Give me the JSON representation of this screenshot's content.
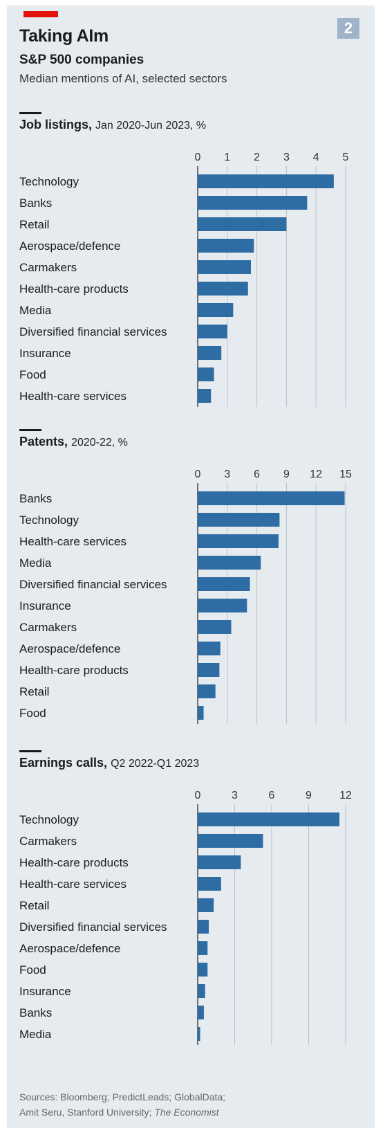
{
  "header": {
    "title": "Taking AIm",
    "subtitle": "S&P 500 companies",
    "description": "Median mentions of AI, selected sectors",
    "figure_number": "2"
  },
  "colors": {
    "bar": "#2e6ca4",
    "grid": "#b8c2cc",
    "accent": "#e3120b",
    "background": "#e6ebf0"
  },
  "chart_data": [
    {
      "type": "bar",
      "orientation": "horizontal",
      "title": "Job listings,",
      "period": "Jan 2020-Jun 2023, %",
      "categories": [
        "Technology",
        "Banks",
        "Retail",
        "Aerospace/defence",
        "Carmakers",
        "Health-care products",
        "Media",
        "Diversified financial services",
        "Insurance",
        "Food",
        "Health-care services"
      ],
      "values": [
        4.6,
        3.7,
        3.0,
        1.9,
        1.8,
        1.7,
        1.2,
        1.0,
        0.8,
        0.55,
        0.45
      ],
      "xlim": [
        0,
        5
      ],
      "ticks": [
        "0",
        "1",
        "2",
        "3",
        "4",
        "5"
      ],
      "tick_values": [
        0,
        1,
        2,
        3,
        4,
        5
      ],
      "grid": true
    },
    {
      "type": "bar",
      "orientation": "horizontal",
      "title": "Patents,",
      "period": "2020-22, %",
      "categories": [
        "Banks",
        "Technology",
        "Health-care services",
        "Media",
        "Diversified financial services",
        "Insurance",
        "Carmakers",
        "Aerospace/defence",
        "Health-care products",
        "Retail",
        "Food"
      ],
      "values": [
        14.9,
        8.3,
        8.2,
        6.4,
        5.3,
        5.0,
        3.4,
        2.3,
        2.2,
        1.8,
        0.6
      ],
      "xlim": [
        0,
        15
      ],
      "ticks": [
        "0",
        "3",
        "6",
        "9",
        "12",
        "15"
      ],
      "tick_values": [
        0,
        3,
        6,
        9,
        12,
        15
      ],
      "grid": true
    },
    {
      "type": "bar",
      "orientation": "horizontal",
      "title": "Earnings calls,",
      "period": "Q2 2022-Q1 2023",
      "categories": [
        "Technology",
        "Carmakers",
        "Health-care products",
        "Health-care services",
        "Retail",
        "Diversified financial services",
        "Aerospace/defence",
        "Food",
        "Insurance",
        "Banks",
        "Media"
      ],
      "values": [
        11.5,
        5.3,
        3.5,
        1.9,
        1.3,
        0.9,
        0.8,
        0.8,
        0.6,
        0.5,
        0.2
      ],
      "xlim": [
        0,
        12
      ],
      "ticks": [
        "0",
        "3",
        "6",
        "9",
        "12"
      ],
      "tick_values": [
        0,
        3,
        6,
        9,
        12
      ],
      "grid": true
    }
  ],
  "footer": {
    "sources_line1": "Sources: Bloomberg; PredictLeads; GlobalData;",
    "sources_line2": "Amit Seru, Stanford University;",
    "sources_publisher": "The Economist"
  }
}
